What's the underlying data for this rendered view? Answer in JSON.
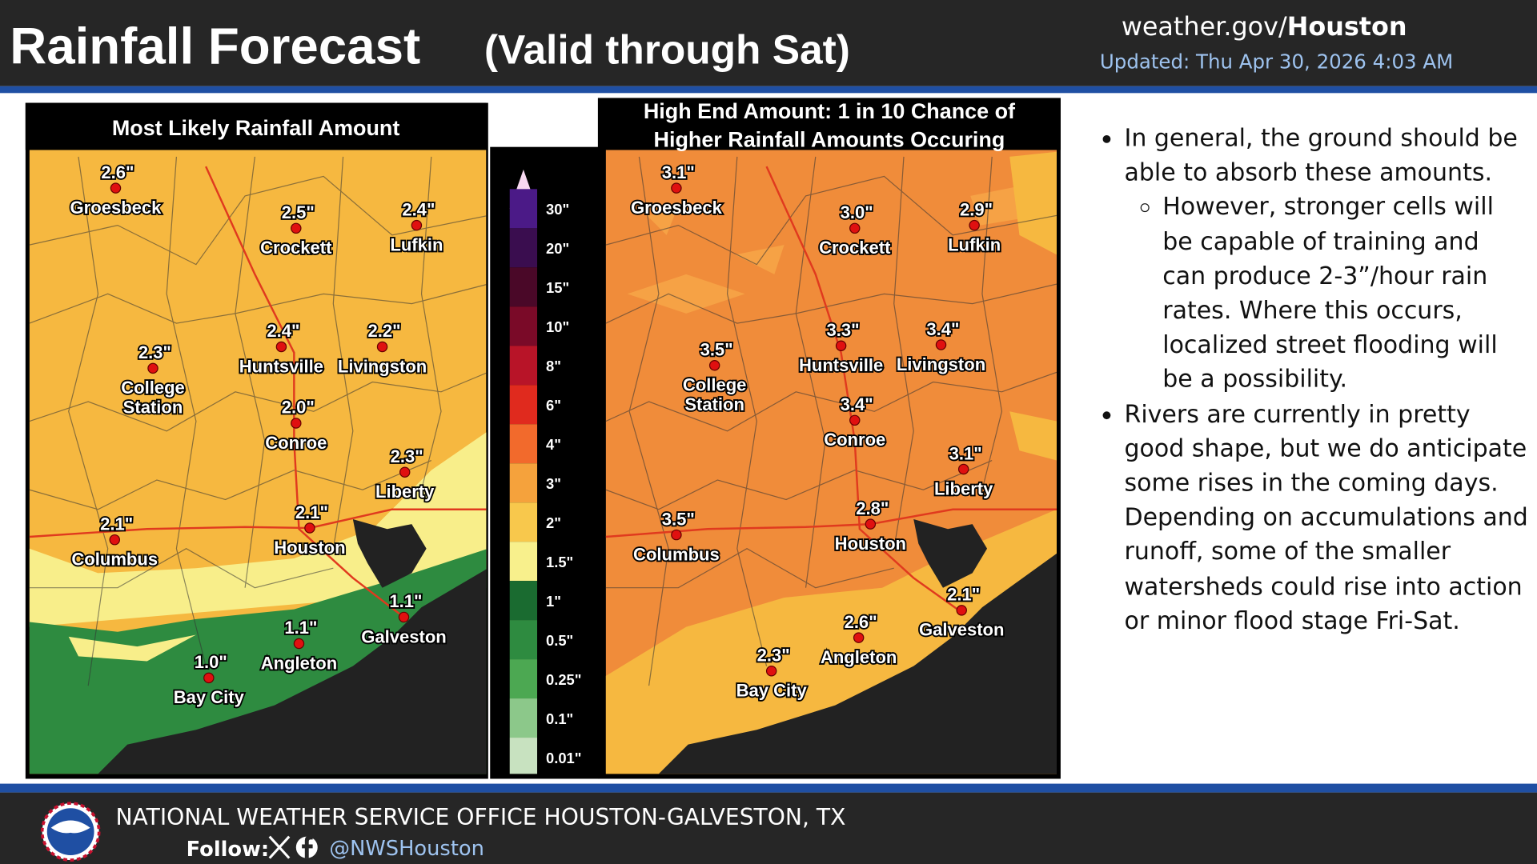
{
  "header": {
    "title": "Rainfall Forecast",
    "subtitle": "(Valid through Sat)",
    "site": "weather.gov/",
    "site_bold": "Houston",
    "updated": "Updated: Thu Apr 30, 2026 4:03 AM"
  },
  "maps": [
    {
      "title": [
        "Most Likely Rainfall Amount"
      ],
      "cities": [
        {
          "name": [
            "Groesbeck"
          ],
          "value": "2.6\""
        },
        {
          "name": [
            "Crockett"
          ],
          "value": "2.5\""
        },
        {
          "name": [
            "Lufkin"
          ],
          "value": "2.4\""
        },
        {
          "name": [
            "Huntsville"
          ],
          "value": "2.4\""
        },
        {
          "name": [
            "Livingston"
          ],
          "value": "2.2\""
        },
        {
          "name": [
            "College",
            "Station"
          ],
          "value": "2.3\""
        },
        {
          "name": [
            "Conroe"
          ],
          "value": "2.0\""
        },
        {
          "name": [
            "Liberty"
          ],
          "value": "2.3\""
        },
        {
          "name": [
            "Columbus"
          ],
          "value": "2.1\""
        },
        {
          "name": [
            "Houston"
          ],
          "value": "2.1\""
        },
        {
          "name": [
            "Galveston"
          ],
          "value": "1.1\""
        },
        {
          "name": [
            "Angleton"
          ],
          "value": "1.1\""
        },
        {
          "name": [
            "Bay City"
          ],
          "value": "1.0\""
        }
      ]
    },
    {
      "title": [
        "High End Amount: 1 in 10 Chance of",
        "Higher Rainfall Amounts Occuring"
      ],
      "cities": [
        {
          "name": [
            "Groesbeck"
          ],
          "value": "3.1\""
        },
        {
          "name": [
            "Crockett"
          ],
          "value": "3.0\""
        },
        {
          "name": [
            "Lufkin"
          ],
          "value": "2.9\""
        },
        {
          "name": [
            "Huntsville"
          ],
          "value": "3.3\""
        },
        {
          "name": [
            "Livingston"
          ],
          "value": "3.4\""
        },
        {
          "name": [
            "College",
            "Station"
          ],
          "value": "3.5\""
        },
        {
          "name": [
            "Conroe"
          ],
          "value": "3.4\""
        },
        {
          "name": [
            "Liberty"
          ],
          "value": "3.1\""
        },
        {
          "name": [
            "Columbus"
          ],
          "value": "3.5\""
        },
        {
          "name": [
            "Houston"
          ],
          "value": "2.8\""
        },
        {
          "name": [
            "Galveston"
          ],
          "value": "2.1\""
        },
        {
          "name": [
            "Angleton"
          ],
          "value": "2.6\""
        },
        {
          "name": [
            "Bay City"
          ],
          "value": "2.3\""
        }
      ]
    }
  ],
  "legend": {
    "labels": [
      "30\"",
      "20\"",
      "15\"",
      "10\"",
      "8\"",
      "6\"",
      "4\"",
      "3\"",
      "2\"",
      "1.5\"",
      "1\"",
      "0.5\"",
      "0.25\"",
      "0.1\"",
      "0.01\""
    ],
    "colors": [
      "#4b1a87",
      "#3a0d4f",
      "#4a0828",
      "#7a0a28",
      "#b81428",
      "#e02a1e",
      "#f26a2c",
      "#f5a23c",
      "#f8c84c",
      "#f8f08c",
      "#1a6b30",
      "#2e8b40",
      "#4ca852",
      "#8cc88a",
      "#c8e2c0"
    ]
  },
  "bullets": [
    {
      "text": "In general, the ground should be able to absorb these amounts.",
      "sub": [
        "However, stronger cells will be capable of training and can produce 2-3”/hour rain rates. Where this occurs, localized street flooding will be a possibility."
      ]
    },
    {
      "text": "Rivers are currently in pretty good shape, but we do anticipate some rises in the coming days. Depending on accumulations and runoff, some of the smaller watersheds could rise into action or minor flood stage Fri-Sat.",
      "sub": []
    }
  ],
  "footer": {
    "office": "NATIONAL WEATHER SERVICE OFFICE HOUSTON-GALVESTON, TX",
    "follow": "Follow:",
    "handle": "@NWSHouston"
  }
}
